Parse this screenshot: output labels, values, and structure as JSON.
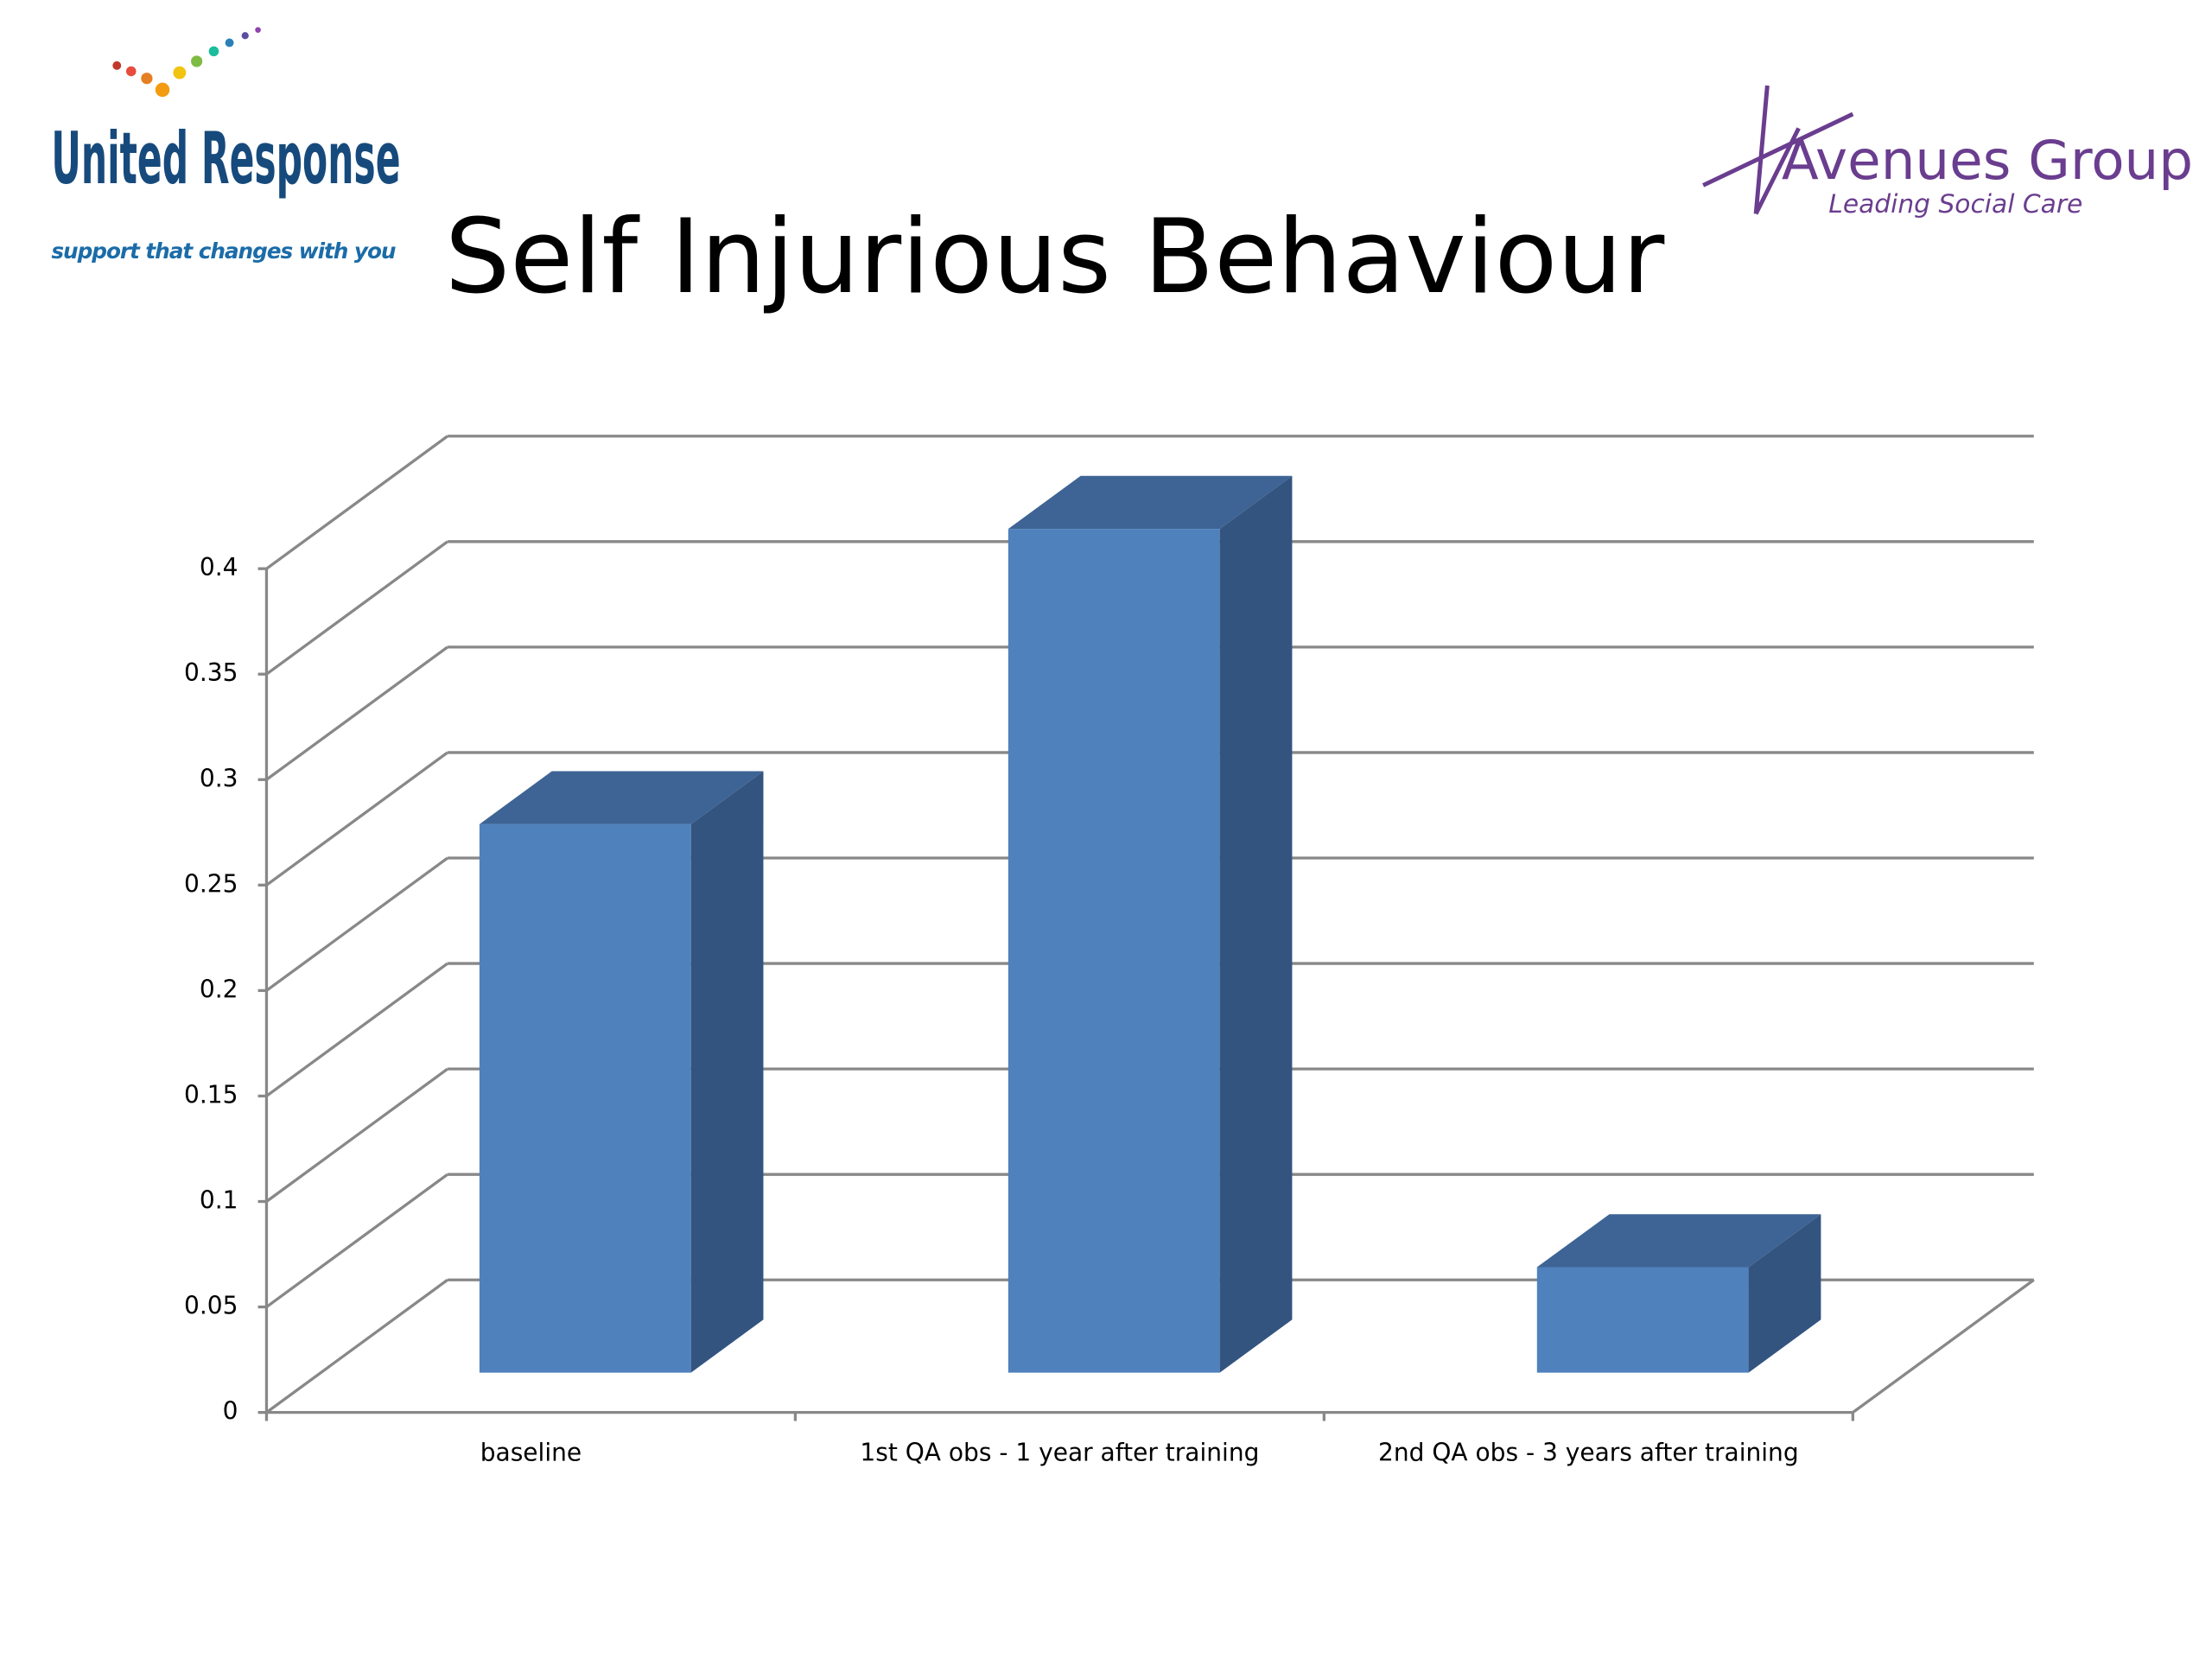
{
  "logos": {
    "left_name": "United Response",
    "left_tagline": "support that changes with you",
    "right_name": "Avenues Group",
    "right_tagline": "Leading Social Care"
  },
  "chart_data": {
    "type": "bar3d",
    "title": "Self Injurious Behaviour",
    "categories": [
      "baseline",
      "1st QA obs - 1 year after training",
      "2nd QA obs - 3 years after training"
    ],
    "values": [
      0.26,
      0.4,
      0.05
    ],
    "color": "#4f81bd",
    "ylim": [
      0,
      0.4
    ],
    "yticks": [
      0,
      0.05,
      0.1,
      0.15,
      0.2,
      0.25,
      0.3,
      0.35,
      0.4
    ],
    "grid": true
  }
}
